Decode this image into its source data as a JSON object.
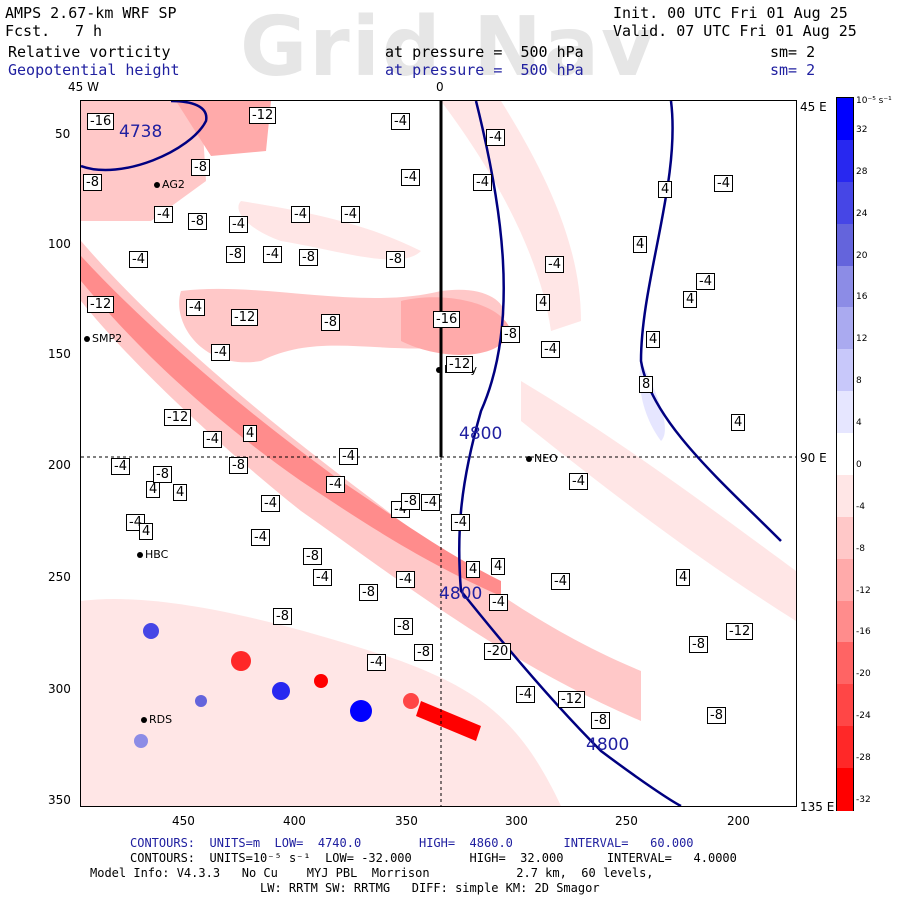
{
  "header": {
    "model": "AMPS 2.67-km WRF SP",
    "fcst_label": "Fcst.",
    "fcst_value": "7 h",
    "init": "Init. 00 UTC Fri 01 Aug 25",
    "valid": "Valid. 07 UTC Fri 01 Aug 25",
    "var1_name": "Relative vorticity",
    "var1_level": "at pressure =  500 hPa",
    "var1_sm": "sm= 2",
    "var2_name": "Geopotential height",
    "var2_level": "at pressure =  500 hPa",
    "var2_sm": "sm= 2",
    "watermark": "Grid Nav"
  },
  "axes": {
    "top_ticks": [
      "45 W",
      "0"
    ],
    "right_ticks": [
      "45 E",
      "90 E",
      "135 E"
    ],
    "left_ticks": [
      "50",
      "100",
      "150",
      "200",
      "250",
      "300",
      "350"
    ],
    "bottom_ticks": [
      "450",
      "400",
      "350",
      "300",
      "250",
      "200"
    ]
  },
  "colorbar": {
    "unit": "10⁻⁵ s⁻¹",
    "labels": [
      "32",
      "28",
      "24",
      "20",
      "16",
      "12",
      "8",
      "4",
      "0",
      "-4",
      "-8",
      "-12",
      "-16",
      "-20",
      "-24",
      "-28",
      "-32"
    ],
    "colors": [
      "#0000ff",
      "#2828f0",
      "#4646e6",
      "#6464dc",
      "#8c8ce6",
      "#aaaaf0",
      "#c8c8fa",
      "#e6e6ff",
      "#ffffff",
      "#ffe6e6",
      "#ffc8c8",
      "#ffaaaa",
      "#ff8c8c",
      "#ff6464",
      "#ff4646",
      "#ff2828",
      "#ff0000"
    ]
  },
  "stations": [
    {
      "name": "AG2"
    },
    {
      "name": "SMP2"
    },
    {
      "name": "Henry"
    },
    {
      "name": "NEO"
    },
    {
      "name": "HBC"
    },
    {
      "name": "RDS"
    }
  ],
  "height_labels": [
    "4738",
    "4800",
    "4800",
    "4800"
  ],
  "vort_labels": [
    "-16",
    "-12",
    "-4",
    "-4",
    "-8",
    "-8",
    "-4",
    "-8",
    "-4",
    "-4",
    "-4",
    "-4",
    "-4",
    "4",
    "-4",
    "-8",
    "-8",
    "-8",
    "-4",
    "-4",
    "4",
    "-12",
    "-12",
    "-8",
    "-16",
    "-8",
    "-4",
    "4",
    "-12",
    "4",
    "-8",
    "-12",
    "-4",
    "4",
    "-4",
    "-4",
    "-4",
    "4",
    "8",
    "4",
    "-4",
    "4",
    "-8",
    "-4",
    "-4",
    "-4",
    "4",
    "-4",
    "-4",
    "-4",
    "4",
    "-8",
    "4",
    "4",
    "-4",
    "-4",
    "-4",
    "4",
    "-8",
    "-8",
    "-4",
    "-8",
    "-4",
    "-8",
    "-12",
    "-4",
    "-8",
    "-20",
    "-12",
    "-4",
    "-8",
    "-4",
    "-8",
    "-4",
    "-4",
    "-8"
  ],
  "footer": {
    "line1": "CONTOURS:  UNITS=m  LOW=  4740.0        HIGH=  4860.0       INTERVAL=   60.000",
    "line2": "CONTOURS:  UNITS=10⁻⁵ s⁻¹  LOW= -32.000        HIGH=  32.000      INTERVAL=   4.0000",
    "line3": "Model Info: V4.3.3   No Cu    MYJ PBL  Morrison            2.7 km,  60 levels,",
    "line4": "LW: RRTM SW: RRTMG   DIFF: simple KM: 2D Smagor"
  }
}
